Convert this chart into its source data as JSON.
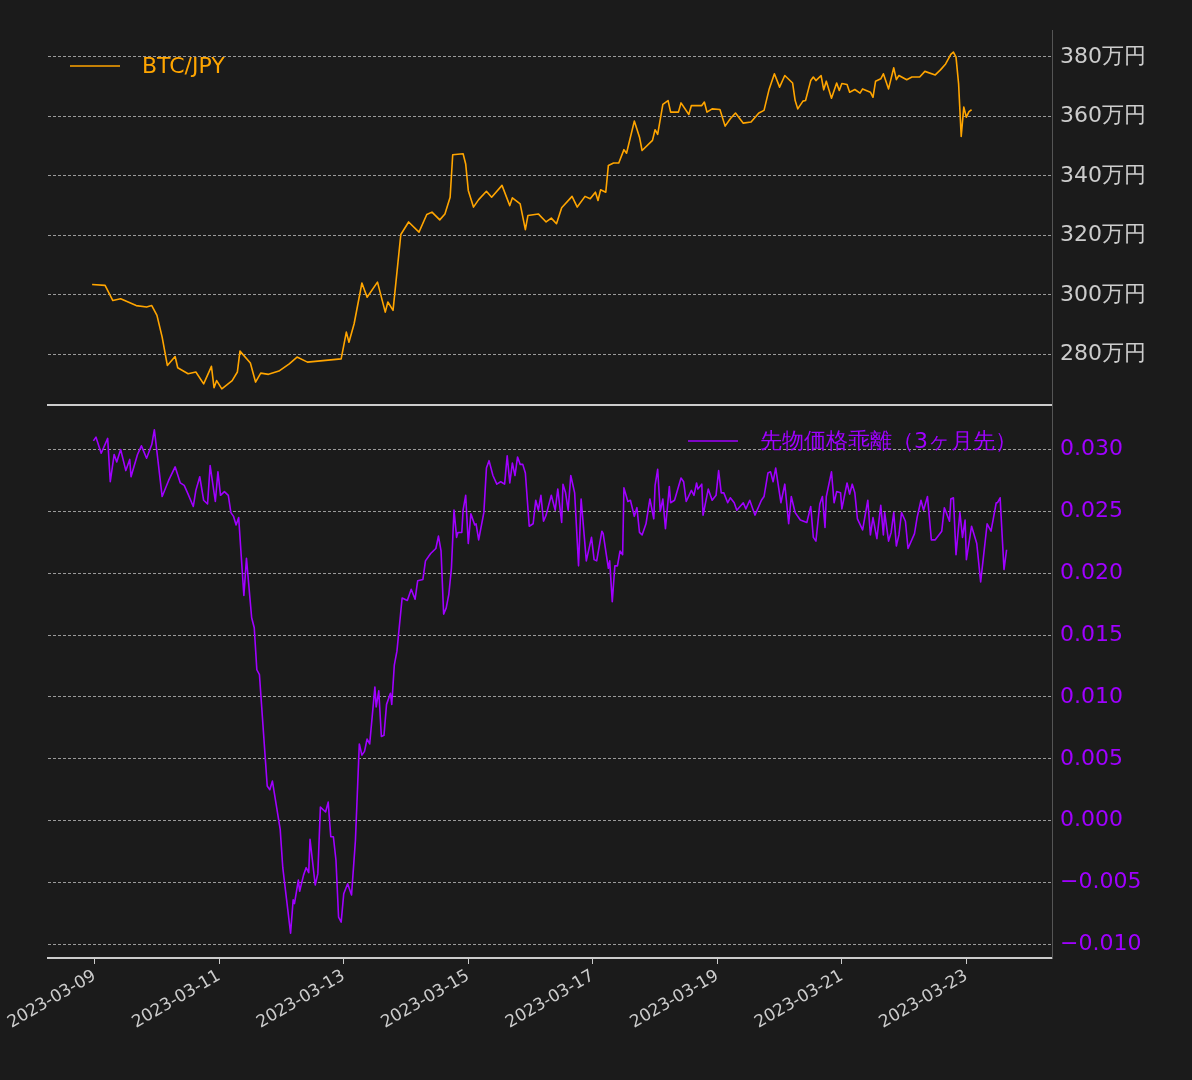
{
  "chart_data": [
    {
      "type": "line",
      "xlim": [
        "2023-03-08T06:00",
        "2023-03-24T09:00"
      ],
      "xticks": [
        "2023-03-09",
        "2023-03-11",
        "2023-03-13",
        "2023-03-15",
        "2023-03-17",
        "2023-03-19",
        "2023-03-21",
        "2023-03-23"
      ],
      "ylim": [
        263,
        389
      ],
      "yticks": [
        {
          "value": 280,
          "label": "280万円"
        },
        {
          "value": 300,
          "label": "300万円"
        },
        {
          "value": 320,
          "label": "320万円"
        },
        {
          "value": 340,
          "label": "340万円"
        },
        {
          "value": 360,
          "label": "360万円"
        },
        {
          "value": 380,
          "label": "380万円"
        }
      ],
      "grid": "y",
      "legend": "top left",
      "tick_labels": "y",
      "series": [
        {
          "name": "BTC/JPY",
          "color": "#ffa500",
          "x": [
            "2023-03-08T23:00",
            "2023-03-09T04:00",
            "2023-03-09T07:00",
            "2023-03-09T10:00",
            "2023-03-09T16:00",
            "2023-03-09T20:00",
            "2023-03-09T22:00",
            "2023-03-10T00:00",
            "2023-03-10T02:00",
            "2023-03-10T04:00",
            "2023-03-10T07:00",
            "2023-03-10T08:00",
            "2023-03-10T12:00",
            "2023-03-10T15:00",
            "2023-03-10T18:00",
            "2023-03-10T21:00",
            "2023-03-10T22:00",
            "2023-03-10T23:00",
            "2023-03-11T01:00",
            "2023-03-11T05:00",
            "2023-03-11T07:00",
            "2023-03-11T08:00",
            "2023-03-11T12:00",
            "2023-03-11T14:00",
            "2023-03-11T16:00",
            "2023-03-11T19:00",
            "2023-03-11T23:00",
            "2023-03-12T03:00",
            "2023-03-12T06:00",
            "2023-03-12T10:00",
            "2023-03-12T17:00",
            "2023-03-12T23:00",
            "2023-03-13T01:00",
            "2023-03-13T02:00",
            "2023-03-13T04:00",
            "2023-03-13T07:00",
            "2023-03-13T09:00",
            "2023-03-13T13:00",
            "2023-03-13T16:00",
            "2023-03-13T17:00",
            "2023-03-13T19:00",
            "2023-03-13T22:00",
            "2023-03-14T01:00",
            "2023-03-14T05:00",
            "2023-03-14T08:00",
            "2023-03-14T10:00",
            "2023-03-14T13:00",
            "2023-03-14T15:00",
            "2023-03-14T17:00",
            "2023-03-14T18:00",
            "2023-03-14T22:00",
            "2023-03-14T23:00",
            "2023-03-15T00:00",
            "2023-03-15T02:00",
            "2023-03-15T04:00",
            "2023-03-15T07:00",
            "2023-03-15T09:00",
            "2023-03-15T13:00",
            "2023-03-15T16:00",
            "2023-03-15T17:00",
            "2023-03-15T20:00",
            "2023-03-15T22:00",
            "2023-03-15T23:00",
            "2023-03-16T03:00",
            "2023-03-16T06:00",
            "2023-03-16T08:00",
            "2023-03-16T10:00",
            "2023-03-16T12:00",
            "2023-03-16T16:00",
            "2023-03-16T18:00",
            "2023-03-16T21:00",
            "2023-03-16T23:00",
            "2023-03-17T01:00",
            "2023-03-17T02:00",
            "2023-03-17T03:00",
            "2023-03-17T05:00",
            "2023-03-17T06:00",
            "2023-03-17T08:00",
            "2023-03-17T10:00",
            "2023-03-17T12:00",
            "2023-03-17T13:00",
            "2023-03-17T16:00",
            "2023-03-17T18:00",
            "2023-03-17T19:00",
            "2023-03-17T23:00",
            "2023-03-18T00:00",
            "2023-03-18T01:00",
            "2023-03-18T03:00",
            "2023-03-18T05:00",
            "2023-03-18T06:00",
            "2023-03-18T09:00",
            "2023-03-18T10:00",
            "2023-03-18T13:00",
            "2023-03-18T14:00",
            "2023-03-18T18:00",
            "2023-03-18T19:00",
            "2023-03-18T20:00",
            "2023-03-18T22:00",
            "2023-03-19T01:00",
            "2023-03-19T03:00",
            "2023-03-19T05:00",
            "2023-03-19T07:00",
            "2023-03-19T10:00",
            "2023-03-19T13:00",
            "2023-03-19T16:00",
            "2023-03-19T18:00",
            "2023-03-19T20:00",
            "2023-03-19T22:00",
            "2023-03-20T00:00",
            "2023-03-20T02:00",
            "2023-03-20T05:00",
            "2023-03-20T06:00",
            "2023-03-20T07:00",
            "2023-03-20T09:00",
            "2023-03-20T10:00",
            "2023-03-20T12:00",
            "2023-03-20T13:00",
            "2023-03-20T14:00",
            "2023-03-20T16:00",
            "2023-03-20T17:00",
            "2023-03-20T18:00",
            "2023-03-20T20:00",
            "2023-03-20T22:00",
            "2023-03-20T23:00",
            "2023-03-21T00:00",
            "2023-03-21T02:00",
            "2023-03-21T03:00",
            "2023-03-21T05:00",
            "2023-03-21T07:00",
            "2023-03-21T08:00",
            "2023-03-21T11:00",
            "2023-03-21T12:00",
            "2023-03-21T13:00",
            "2023-03-21T15:00",
            "2023-03-21T16:00",
            "2023-03-21T18:00",
            "2023-03-21T20:00",
            "2023-03-21T21:00",
            "2023-03-21T22:00",
            "2023-03-22T01:00",
            "2023-03-22T03:00",
            "2023-03-22T06:00",
            "2023-03-22T08:00",
            "2023-03-22T12:00",
            "2023-03-22T14:00",
            "2023-03-22T16:00",
            "2023-03-22T18:00",
            "2023-03-22T19:00",
            "2023-03-22T20:00",
            "2023-03-22T21:00",
            "2023-03-22T22:00",
            "2023-03-22T23:00",
            "2023-03-23T00:00",
            "2023-03-23T01:00",
            "2023-03-23T02:00"
          ],
          "values": [
            303.5,
            303.2,
            298.1,
            298.7,
            296.4,
            295.9,
            296.4,
            293.1,
            285.8,
            276.3,
            279.3,
            275.5,
            273.5,
            274.1,
            270.1,
            276.0,
            268.8,
            271.2,
            268.4,
            271.2,
            274.1,
            281.1,
            277.1,
            270.7,
            273.7,
            273.3,
            274.4,
            276.8,
            279.1,
            277.4,
            278.0,
            278.5,
            287.5,
            284.1,
            290.3,
            304.0,
            299.2,
            304.3,
            294.2,
            297.6,
            294.8,
            320.3,
            324.5,
            321.1,
            327.0,
            327.8,
            325.2,
            327.2,
            332.8,
            347.1,
            347.4,
            344.0,
            335.1,
            329.5,
            332.0,
            334.8,
            332.8,
            336.8,
            330.0,
            332.6,
            330.6,
            321.9,
            326.7,
            327.2,
            324.5,
            325.8,
            323.9,
            329.3,
            333.1,
            329.5,
            333.1,
            332.3,
            334.5,
            331.7,
            335.3,
            334.5,
            343.5,
            344.3,
            344.3,
            348.8,
            347.6,
            358.4,
            353.0,
            348.5,
            351.9,
            355.5,
            353.9,
            364.0,
            365.3,
            361.4,
            361.4,
            364.5,
            360.6,
            363.6,
            363.6,
            364.8,
            361.4,
            362.5,
            362.3,
            356.7,
            359.2,
            361.1,
            357.7,
            358.1,
            361.1,
            362.0,
            369.2,
            374.3,
            369.8,
            373.7,
            371.2,
            365.3,
            362.5,
            365.1,
            365.3,
            372.0,
            373.2,
            372.0,
            373.7,
            368.9,
            371.8,
            366.1,
            371.2,
            368.7,
            371.0,
            370.7,
            368.1,
            369.0,
            367.8,
            369.2,
            368.1,
            366.4,
            371.8,
            372.6,
            374.3,
            369.2,
            376.3,
            372.3,
            373.7,
            372.3,
            373.2,
            373.2,
            375.1,
            373.9,
            375.6,
            377.6,
            380.8,
            381.6,
            379.9,
            370.9,
            353.2,
            363.1,
            359.7,
            361.6,
            362.2
          ]
        }
      ]
    },
    {
      "type": "line",
      "xlim": [
        "2023-03-08T06:00",
        "2023-03-24T09:00"
      ],
      "xticks": [
        "2023-03-09",
        "2023-03-11",
        "2023-03-13",
        "2023-03-15",
        "2023-03-17",
        "2023-03-19",
        "2023-03-21",
        "2023-03-23"
      ],
      "ylim": [
        -0.0111,
        0.0336
      ],
      "yticks": [
        {
          "value": -0.01,
          "label": "−0.010"
        },
        {
          "value": -0.005,
          "label": "−0.005"
        },
        {
          "value": 0,
          "label": "0.000"
        },
        {
          "value": 0.005,
          "label": "0.005"
        },
        {
          "value": 0.01,
          "label": "0.010"
        },
        {
          "value": 0.015,
          "label": "0.015"
        },
        {
          "value": 0.02,
          "label": "0.020"
        },
        {
          "value": 0.025,
          "label": "0.025"
        },
        {
          "value": 0.03,
          "label": "0.030"
        }
      ],
      "grid": "y",
      "legend": "top right",
      "series": [
        {
          "name": "先物価格乖離（3ヶ月先）",
          "color": "#a000ff",
          "x": [
            "2023-03-08T23:30",
            "2023-03-09T00:30",
            "2023-03-09T02:30",
            "2023-03-09T05:00",
            "2023-03-09T06:00",
            "2023-03-09T07:30",
            "2023-03-09T08:30",
            "2023-03-09T10:00",
            "2023-03-09T12:00",
            "2023-03-09T13:30",
            "2023-03-09T14:00",
            "2023-03-09T16:30",
            "2023-03-09T18:00",
            "2023-03-09T20:00",
            "2023-03-09T22:00",
            "2023-03-09T23:00",
            "2023-03-10T02:00",
            "2023-03-10T04:30",
            "2023-03-10T07:00",
            "2023-03-10T09:00",
            "2023-03-10T10:30",
            "2023-03-10T12:00",
            "2023-03-10T14:00",
            "2023-03-10T15:00",
            "2023-03-10T16:30",
            "2023-03-10T18:00",
            "2023-03-10T19:30",
            "2023-03-10T20:30",
            "2023-03-10T22:30",
            "2023-03-10T23:30",
            "2023-03-11T00:30",
            "2023-03-11T02:00",
            "2023-03-11T03:30",
            "2023-03-11T04:30",
            "2023-03-11T05:30",
            "2023-03-11T06:30",
            "2023-03-11T07:30",
            "2023-03-11T09:30",
            "2023-03-11T10:30",
            "2023-03-11T12:30",
            "2023-03-11T13:30",
            "2023-03-11T14:30",
            "2023-03-11T15:30",
            "2023-03-11T18:30",
            "2023-03-11T19:30",
            "2023-03-11T20:30",
            "2023-03-11T23:30",
            "2023-03-12T00:30",
            "2023-03-12T03:30",
            "2023-03-12T04:30",
            "2023-03-12T05:00",
            "2023-03-12T06:30",
            "2023-03-12T07:00",
            "2023-03-12T08:30",
            "2023-03-12T09:30",
            "2023-03-12T10:30",
            "2023-03-12T11:00",
            "2023-03-12T13:00",
            "2023-03-12T14:00",
            "2023-03-12T15:00",
            "2023-03-12T17:00",
            "2023-03-12T18:00",
            "2023-03-12T19:00",
            "2023-03-12T20:00",
            "2023-03-12T21:00",
            "2023-03-12T22:00",
            "2023-03-12T23:00",
            "2023-03-13T00:00",
            "2023-03-13T01:30",
            "2023-03-13T03:00",
            "2023-03-13T04:30",
            "2023-03-13T06:00",
            "2023-03-13T07:00",
            "2023-03-13T08:00",
            "2023-03-13T09:00",
            "2023-03-13T10:00",
            "2023-03-13T12:00",
            "2023-03-13T12:30",
            "2023-03-13T13:30",
            "2023-03-13T14:30",
            "2023-03-13T15:30",
            "2023-03-13T16:30",
            "2023-03-13T18:00",
            "2023-03-13T18:30",
            "2023-03-13T19:30",
            "2023-03-13T20:30",
            "2023-03-13T22:30",
            "2023-03-14T00:30",
            "2023-03-14T02:00",
            "2023-03-14T03:30",
            "2023-03-14T04:30",
            "2023-03-14T06:30",
            "2023-03-14T07:30",
            "2023-03-14T09:30",
            "2023-03-14T11:30",
            "2023-03-14T12:30",
            "2023-03-14T13:30",
            "2023-03-14T14:30",
            "2023-03-14T15:30",
            "2023-03-14T16:30",
            "2023-03-14T17:30",
            "2023-03-14T18:30",
            "2023-03-14T19:30",
            "2023-03-14T20:00",
            "2023-03-14T21:30",
            "2023-03-14T22:00",
            "2023-03-14T23:00",
            "2023-03-15T00:00",
            "2023-03-15T01:00",
            "2023-03-15T02:30",
            "2023-03-15T03:00",
            "2023-03-15T04:00",
            "2023-03-15T06:00",
            "2023-03-15T07:00",
            "2023-03-15T08:00",
            "2023-03-15T09:30",
            "2023-03-15T11:00",
            "2023-03-15T12:30",
            "2023-03-15T14:00",
            "2023-03-15T15:00",
            "2023-03-15T16:00",
            "2023-03-15T17:00",
            "2023-03-15T18:00",
            "2023-03-15T19:00",
            "2023-03-15T20:00",
            "2023-03-15T21:00",
            "2023-03-15T22:00",
            "2023-03-15T23:30",
            "2023-03-16T01:00",
            "2023-03-16T02:00",
            "2023-03-16T03:00",
            "2023-03-16T04:00",
            "2023-03-16T05:00",
            "2023-03-16T06:00",
            "2023-03-16T08:00",
            "2023-03-16T09:30",
            "2023-03-16T10:30",
            "2023-03-16T12:00",
            "2023-03-16T12:30",
            "2023-03-16T13:30",
            "2023-03-16T14:30",
            "2023-03-16T15:30",
            "2023-03-16T17:00",
            "2023-03-16T18:30",
            "2023-03-16T19:30",
            "2023-03-16T21:30",
            "2023-03-16T23:30",
            "2023-03-17T00:30",
            "2023-03-17T01:30",
            "2023-03-17T03:30",
            "2023-03-17T04:00",
            "2023-03-17T06:00",
            "2023-03-17T06:30",
            "2023-03-17T07:30",
            "2023-03-17T08:30",
            "2023-03-17T09:30",
            "2023-03-17T10:30",
            "2023-03-17T11:30",
            "2023-03-17T12:00",
            "2023-03-17T13:30",
            "2023-03-17T14:30",
            "2023-03-17T16:00",
            "2023-03-17T17:00",
            "2023-03-17T18:00",
            "2023-03-17T19:00",
            "2023-03-17T20:30",
            "2023-03-17T22:00",
            "2023-03-17T23:30",
            "2023-03-18T00:00",
            "2023-03-18T01:00",
            "2023-03-18T02:00",
            "2023-03-18T03:00",
            "2023-03-18T04:00",
            "2023-03-18T05:30",
            "2023-03-18T06:00",
            "2023-03-18T07:30",
            "2023-03-18T10:00",
            "2023-03-18T11:00",
            "2023-03-18T12:00",
            "2023-03-18T14:00",
            "2023-03-18T15:00",
            "2023-03-18T16:00",
            "2023-03-18T16:30",
            "2023-03-18T18:00",
            "2023-03-18T18:30",
            "2023-03-18T20:30",
            "2023-03-18T22:00",
            "2023-03-18T23:30",
            "2023-03-19T00:30",
            "2023-03-19T01:30",
            "2023-03-19T02:30",
            "2023-03-19T04:00",
            "2023-03-19T05:00",
            "2023-03-19T06:30",
            "2023-03-19T07:30",
            "2023-03-19T10:00",
            "2023-03-19T11:00",
            "2023-03-19T12:30",
            "2023-03-19T14:30",
            "2023-03-19T17:00",
            "2023-03-19T18:00",
            "2023-03-19T19:30",
            "2023-03-19T20:30",
            "2023-03-19T21:30",
            "2023-03-19T22:30",
            "2023-03-20T00:30",
            "2023-03-20T02:00",
            "2023-03-20T03:30",
            "2023-03-20T04:30",
            "2023-03-20T06:00",
            "2023-03-20T08:00",
            "2023-03-20T10:30",
            "2023-03-20T12:00",
            "2023-03-20T13:00",
            "2023-03-20T14:00",
            "2023-03-20T15:30",
            "2023-03-20T16:30",
            "2023-03-20T17:30",
            "2023-03-20T18:00",
            "2023-03-20T20:00",
            "2023-03-20T21:00",
            "2023-03-20T22:00",
            "2023-03-20T23:30",
            "2023-03-21T00:00",
            "2023-03-21T02:00",
            "2023-03-21T03:00",
            "2023-03-21T04:00",
            "2023-03-21T05:00",
            "2023-03-21T06:00",
            "2023-03-21T08:00",
            "2023-03-21T10:00",
            "2023-03-21T11:00",
            "2023-03-21T12:00",
            "2023-03-21T13:30",
            "2023-03-21T15:00",
            "2023-03-21T16:00",
            "2023-03-21T16:30",
            "2023-03-21T18:00",
            "2023-03-21T19:00",
            "2023-03-21T20:00",
            "2023-03-21T21:00",
            "2023-03-21T22:00",
            "2023-03-21T23:00",
            "2023-03-22T00:30",
            "2023-03-22T01:30",
            "2023-03-22T04:00",
            "2023-03-22T05:00",
            "2023-03-22T06:30",
            "2023-03-22T07:30",
            "2023-03-22T09:00",
            "2023-03-22T10:30",
            "2023-03-22T12:00",
            "2023-03-22T14:30",
            "2023-03-22T15:30",
            "2023-03-22T17:30",
            "2023-03-22T18:00",
            "2023-03-22T19:00",
            "2023-03-22T20:00",
            "2023-03-22T21:30",
            "2023-03-22T22:30",
            "2023-03-22T23:30",
            "2023-03-23T00:00",
            "2023-03-23T02:00",
            "2023-03-23T04:00",
            "2023-03-23T05:30",
            "2023-03-23T08:00",
            "2023-03-23T09:30",
            "2023-03-23T11:30",
            "2023-03-23T12:00",
            "2023-03-23T13:00",
            "2023-03-23T14:30",
            "2023-03-23T15:30"
          ],
          "values": [
            0.0307,
            0.031,
            0.0297,
            0.0309,
            0.0274,
            0.0296,
            0.029,
            0.03,
            0.0283,
            0.0292,
            0.0278,
            0.0296,
            0.0303,
            0.0293,
            0.0304,
            0.0316,
            0.0262,
            0.0275,
            0.0286,
            0.0273,
            0.0271,
            0.0264,
            0.0254,
            0.0267,
            0.0278,
            0.0259,
            0.0256,
            0.0287,
            0.0258,
            0.0282,
            0.0263,
            0.0266,
            0.0263,
            0.0249,
            0.0246,
            0.0239,
            0.0245,
            0.0182,
            0.0212,
            0.0164,
            0.0156,
            0.0122,
            0.0118,
            0.0028,
            0.0025,
            0.0032,
            -0.0007,
            -0.0038,
            -0.0091,
            -0.0064,
            -0.0067,
            -0.0048,
            -0.0057,
            -0.0044,
            -0.0038,
            -0.0042,
            -0.0015,
            -0.0052,
            -0.0043,
            0.0011,
            0.0007,
            0.0015,
            -0.0013,
            -0.0013,
            -0.0032,
            -0.0078,
            -0.0082,
            -0.0059,
            -0.0051,
            -0.006,
            -0.0016,
            0.0062,
            0.0053,
            0.0056,
            0.0066,
            0.0062,
            0.0108,
            0.0092,
            0.0105,
            0.0068,
            0.0069,
            0.0094,
            0.0103,
            0.0094,
            0.0126,
            0.0137,
            0.018,
            0.0178,
            0.0187,
            0.0179,
            0.0194,
            0.0195,
            0.021,
            0.0216,
            0.022,
            0.023,
            0.0218,
            0.0167,
            0.0172,
            0.0183,
            0.0204,
            0.0251,
            0.0229,
            0.0233,
            0.0233,
            0.0251,
            0.0263,
            0.0224,
            0.0248,
            0.0239,
            0.024,
            0.0227,
            0.0249,
            0.0285,
            0.0291,
            0.0279,
            0.0272,
            0.0274,
            0.0272,
            0.0295,
            0.0273,
            0.0289,
            0.0279,
            0.0294,
            0.0288,
            0.0288,
            0.0281,
            0.0238,
            0.024,
            0.0259,
            0.0251,
            0.0263,
            0.0242,
            0.0247,
            0.0263,
            0.0251,
            0.0268,
            0.0241,
            0.0272,
            0.0265,
            0.0251,
            0.0279,
            0.0265,
            0.0206,
            0.026,
            0.021,
            0.0229,
            0.0211,
            0.021,
            0.0234,
            0.0232,
            0.0204,
            0.021,
            0.0177,
            0.0206,
            0.0206,
            0.0218,
            0.0215,
            0.0269,
            0.0258,
            0.0259,
            0.0246,
            0.0253,
            0.0233,
            0.0231,
            0.024,
            0.026,
            0.0244,
            0.0271,
            0.0284,
            0.025,
            0.026,
            0.0236,
            0.027,
            0.0257,
            0.0259,
            0.0277,
            0.0274,
            0.0258,
            0.0267,
            0.0263,
            0.0273,
            0.0268,
            0.0272,
            0.0247,
            0.0268,
            0.0259,
            0.0263,
            0.0283,
            0.0265,
            0.0265,
            0.0257,
            0.0261,
            0.0257,
            0.0251,
            0.0257,
            0.0252,
            0.0259,
            0.0247,
            0.0259,
            0.0262,
            0.0281,
            0.0282,
            0.0274,
            0.0285,
            0.0257,
            0.0272,
            0.024,
            0.0262,
            0.0249,
            0.0243,
            0.0241,
            0.0254,
            0.0229,
            0.0226,
            0.0256,
            0.0262,
            0.0237,
            0.0262,
            0.0282,
            0.0257,
            0.0266,
            0.0265,
            0.0252,
            0.0273,
            0.0264,
            0.0272,
            0.0265,
            0.0244,
            0.0235,
            0.0259,
            0.0231,
            0.0245,
            0.0228,
            0.0255,
            0.0231,
            0.0249,
            0.0226,
            0.0233,
            0.0249,
            0.0222,
            0.0231,
            0.0249,
            0.0242,
            0.022,
            0.0232,
            0.0245,
            0.0259,
            0.0251,
            0.0262,
            0.0227,
            0.0227,
            0.0234,
            0.0253,
            0.0242,
            0.026,
            0.0261,
            0.0215,
            0.0249,
            0.0229,
            0.0243,
            0.0211,
            0.0238,
            0.0224,
            0.0193,
            0.024,
            0.0234,
            0.0257,
            0.0257,
            0.0261,
            0.0203,
            0.0219
          ]
        }
      ]
    }
  ]
}
